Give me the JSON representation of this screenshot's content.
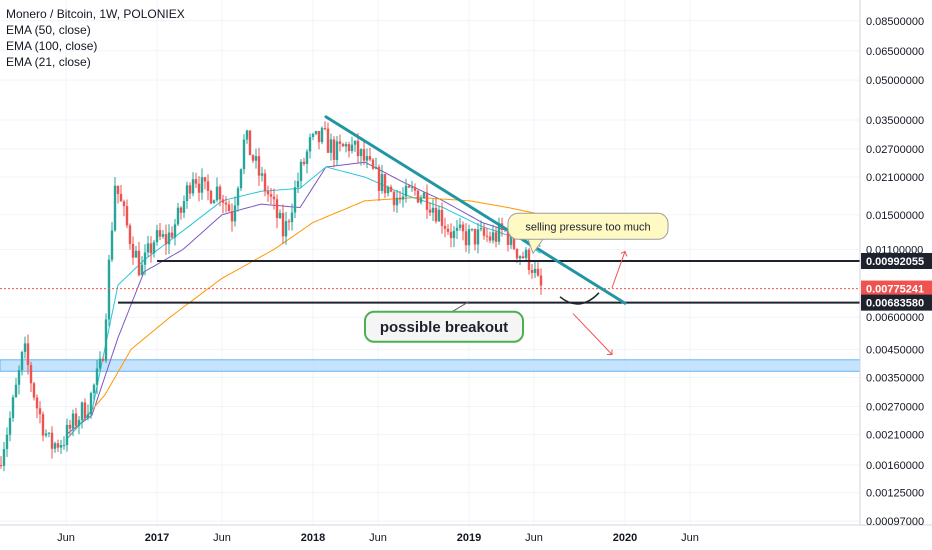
{
  "legend": {
    "title": "Monero / Bitcoin, 1W, POLONIEX",
    "ema_50": "EMA (50, close)",
    "ema_100": "EMA (100, close)",
    "ema_21": "EMA (21, close)"
  },
  "colors": {
    "up": "#26a69a",
    "down": "#ef5350",
    "ema_50": "#7e57c2",
    "ema_100": "#ff9800",
    "ema_21": "#26c6da",
    "trendline": "#2196a3",
    "support_line": "#1e222d",
    "blue_zone": "#bbdefb",
    "current_price": "#ef5350",
    "callout_yellow": "#fff9c4",
    "callout_green_border": "#4caf50"
  },
  "chart_data": {
    "type": "candlestick",
    "symbol": "Monero / Bitcoin, 1W, POLONIEX",
    "y_scale": "log",
    "ylim": [
      0.00097,
      0.097
    ],
    "y_ticks": [
      "0.08500000",
      "0.06500000",
      "0.05000000",
      "0.03500000",
      "0.02700000",
      "0.02100000",
      "0.01500000",
      "0.01100000",
      "0.00600000",
      "0.00450000",
      "0.00350000",
      "0.00270000",
      "0.00210000",
      "0.00160000",
      "0.00125000",
      "0.00097000"
    ],
    "x_ticks": [
      {
        "label": "Jun",
        "date": "2016-06",
        "year": false
      },
      {
        "label": "2017",
        "date": "2017-01",
        "year": true
      },
      {
        "label": "Jun",
        "date": "2017-06",
        "year": false
      },
      {
        "label": "2018",
        "date": "2018-01",
        "year": true
      },
      {
        "label": "Jun",
        "date": "2018-06",
        "year": false
      },
      {
        "label": "2019",
        "date": "2019-01",
        "year": true
      },
      {
        "label": "Jun",
        "date": "2019-06",
        "year": false
      },
      {
        "label": "2020",
        "date": "2020-01",
        "year": true
      },
      {
        "label": "Jun",
        "date": "2020-06",
        "year": false
      }
    ],
    "price_anchors": [
      [
        "2016-01",
        0.0016
      ],
      [
        "2016-02",
        0.0025
      ],
      [
        "2016-03",
        0.0045
      ],
      [
        "2016-04",
        0.0027
      ],
      [
        "2016-05",
        0.0019
      ],
      [
        "2016-06",
        0.002
      ],
      [
        "2016-07",
        0.0024
      ],
      [
        "2016-08",
        0.0028
      ],
      [
        "2016-09",
        0.004
      ],
      [
        "2016-10",
        0.02
      ],
      [
        "2016-11",
        0.013
      ],
      [
        "2016-12",
        0.009
      ],
      [
        "2017-01",
        0.012
      ],
      [
        "2017-02",
        0.012
      ],
      [
        "2017-03",
        0.015
      ],
      [
        "2017-04",
        0.022
      ],
      [
        "2017-05",
        0.018
      ],
      [
        "2017-06",
        0.019
      ],
      [
        "2017-07",
        0.015
      ],
      [
        "2017-08",
        0.03
      ],
      [
        "2017-09",
        0.022
      ],
      [
        "2017-10",
        0.017
      ],
      [
        "2017-11",
        0.0125
      ],
      [
        "2017-12",
        0.02
      ],
      [
        "2018-01",
        0.028
      ],
      [
        "2018-02",
        0.03
      ],
      [
        "2018-03",
        0.026
      ],
      [
        "2018-04",
        0.028
      ],
      [
        "2018-05",
        0.025
      ],
      [
        "2018-06",
        0.021
      ],
      [
        "2018-07",
        0.019
      ],
      [
        "2018-08",
        0.017
      ],
      [
        "2018-09",
        0.0185
      ],
      [
        "2018-10",
        0.0175
      ],
      [
        "2018-11",
        0.015
      ],
      [
        "2018-12",
        0.0125
      ],
      [
        "2019-01",
        0.0123
      ],
      [
        "2019-02",
        0.0123
      ],
      [
        "2019-03",
        0.0122
      ],
      [
        "2019-04",
        0.013
      ],
      [
        "2019-05",
        0.0108
      ],
      [
        "2019-06",
        0.0098
      ],
      [
        "2019-06-20",
        0.0077524
      ]
    ],
    "emas": [
      {
        "name": "EMA (50, close)",
        "anchors": [
          [
            "2016-06",
            0.0021
          ],
          [
            "2016-08",
            0.0025
          ],
          [
            "2016-10",
            0.005
          ],
          [
            "2016-12",
            0.009
          ],
          [
            "2017-03",
            0.011
          ],
          [
            "2017-06",
            0.015
          ],
          [
            "2017-09",
            0.0165
          ],
          [
            "2017-12",
            0.016
          ],
          [
            "2018-02",
            0.023
          ],
          [
            "2018-05",
            0.024
          ],
          [
            "2018-08",
            0.02
          ],
          [
            "2018-11",
            0.017
          ],
          [
            "2019-02",
            0.014
          ],
          [
            "2019-05",
            0.0125
          ],
          [
            "2019-06-20",
            0.0112
          ]
        ]
      },
      {
        "name": "EMA (100, close)",
        "anchors": [
          [
            "2016-06",
            0.002
          ],
          [
            "2016-09",
            0.003
          ],
          [
            "2016-11",
            0.0045
          ],
          [
            "2017-02",
            0.006
          ],
          [
            "2017-06",
            0.0085
          ],
          [
            "2017-10",
            0.011
          ],
          [
            "2018-01",
            0.014
          ],
          [
            "2018-05",
            0.017
          ],
          [
            "2018-09",
            0.0175
          ],
          [
            "2019-01",
            0.017
          ],
          [
            "2019-04",
            0.016
          ],
          [
            "2019-06-20",
            0.015
          ]
        ]
      },
      {
        "name": "EMA (21, close)",
        "anchors": [
          [
            "2016-06",
            0.002
          ],
          [
            "2016-08",
            0.0026
          ],
          [
            "2016-10",
            0.008
          ],
          [
            "2016-12",
            0.01
          ],
          [
            "2017-03",
            0.013
          ],
          [
            "2017-06",
            0.017
          ],
          [
            "2017-09",
            0.0185
          ],
          [
            "2017-12",
            0.019
          ],
          [
            "2018-02",
            0.023
          ],
          [
            "2018-05",
            0.021
          ],
          [
            "2018-08",
            0.018
          ],
          [
            "2018-11",
            0.016
          ],
          [
            "2019-02",
            0.0135
          ],
          [
            "2019-05",
            0.012
          ],
          [
            "2019-06-20",
            0.0105
          ]
        ]
      }
    ],
    "current_price": "0.00775241",
    "levels": [
      {
        "name": "resistance",
        "value": 0.00992055,
        "label": "0.00992055",
        "from": "2017-01",
        "to": "2020-06"
      },
      {
        "name": "support",
        "value": 0.0068358,
        "label": "0.00683580",
        "from": "2016-10",
        "to": "2020-06"
      }
    ],
    "trendline": {
      "from": [
        "2018-02",
        0.036
      ],
      "to": [
        "2020-01",
        0.0068
      ]
    },
    "blue_zone": [
      0.0037,
      0.0041
    ],
    "annotations": [
      {
        "text": "selling pressure too much",
        "style": "yellow"
      },
      {
        "text": "possible breakout",
        "style": "green"
      }
    ]
  }
}
